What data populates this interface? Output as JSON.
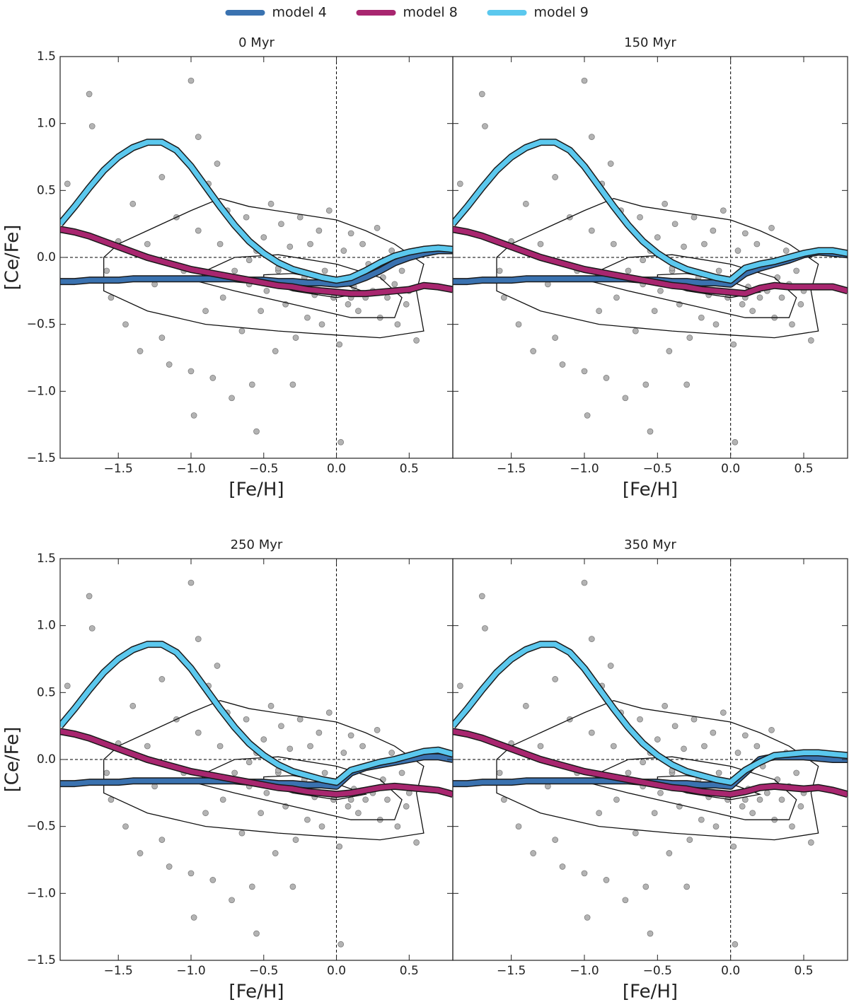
{
  "legend_series": [
    {
      "name": "model 4",
      "color": "#3a72b0"
    },
    {
      "name": "model 8",
      "color": "#a8266f"
    },
    {
      "name": "model 9",
      "color": "#5bc8ee"
    }
  ],
  "stars": {
    "color": "#b3b3b3",
    "x": [
      -1.85,
      -1.7,
      -1.68,
      -1.55,
      -1.5,
      -1.45,
      -1.4,
      -1.35,
      -1.3,
      -1.25,
      -1.2,
      -1.15,
      -1.1,
      -1.05,
      -1.0,
      -0.98,
      -0.95,
      -0.9,
      -0.88,
      -0.85,
      -0.8,
      -0.78,
      -0.75,
      -0.72,
      -0.7,
      -0.68,
      -0.65,
      -0.62,
      -0.6,
      -0.58,
      -0.55,
      -0.52,
      -0.5,
      -0.48,
      -0.45,
      -0.42,
      -0.4,
      -0.38,
      -0.35,
      -0.32,
      -0.3,
      -0.28,
      -0.25,
      -0.22,
      -0.2,
      -0.18,
      -0.15,
      -0.12,
      -0.1,
      -0.08,
      -0.05,
      -0.02,
      0.0,
      0.02,
      0.05,
      0.08,
      0.1,
      0.12,
      0.15,
      0.18,
      0.2,
      0.22,
      0.25,
      0.28,
      0.3,
      0.32,
      0.35,
      0.38,
      0.4,
      0.42,
      0.45,
      0.48,
      0.5,
      0.55,
      -0.95,
      -0.6,
      -0.3,
      0.03,
      -1.58,
      -0.82,
      -1.0,
      -0.55,
      -0.7,
      -0.4,
      0.1,
      -1.2
    ],
    "y": [
      0.55,
      1.22,
      0.98,
      -0.3,
      0.12,
      -0.5,
      0.4,
      -0.7,
      0.1,
      -0.2,
      0.6,
      -0.8,
      0.3,
      -0.1,
      1.32,
      -1.18,
      0.2,
      -0.4,
      0.55,
      -0.9,
      0.1,
      -0.3,
      0.35,
      -1.05,
      -0.1,
      0.22,
      -0.55,
      0.3,
      -0.2,
      -0.95,
      0.05,
      -0.4,
      0.15,
      -0.25,
      0.4,
      -0.7,
      -0.1,
      0.25,
      -0.35,
      0.08,
      -0.2,
      -0.6,
      0.3,
      -0.15,
      -0.45,
      0.1,
      -0.28,
      0.2,
      -0.5,
      -0.1,
      0.35,
      -0.3,
      -0.2,
      -0.65,
      0.05,
      -0.35,
      0.18,
      -0.22,
      -0.4,
      0.1,
      -0.3,
      -0.05,
      -0.25,
      0.22,
      -0.45,
      -0.15,
      -0.3,
      0.05,
      -0.2,
      -0.5,
      -0.1,
      -0.35,
      -0.25,
      -0.62,
      0.9,
      -0.02,
      -0.95,
      -1.38,
      -0.1,
      0.7,
      -0.85,
      -1.3,
      -0.15,
      -0.08,
      -0.3,
      -0.6
    ]
  },
  "contours": [
    {
      "x": [
        -1.6,
        -1.6,
        -1.5,
        -1.3,
        -1.0,
        -0.8,
        -0.6,
        -0.3,
        0.0,
        0.2,
        0.4,
        0.6,
        0.55,
        0.6,
        0.3,
        0.0,
        -0.4,
        -0.9,
        -1.3,
        -1.6
      ],
      "y": [
        -0.15,
        0.0,
        0.1,
        0.2,
        0.35,
        0.44,
        0.38,
        0.33,
        0.28,
        0.2,
        0.1,
        -0.05,
        -0.25,
        -0.55,
        -0.6,
        -0.58,
        -0.55,
        -0.5,
        -0.4,
        -0.25
      ]
    },
    {
      "x": [
        -0.9,
        -0.7,
        -0.4,
        0.0,
        0.3,
        0.45,
        0.4,
        0.1,
        -0.3,
        -0.7,
        -0.95
      ],
      "y": [
        -0.1,
        0.0,
        0.02,
        -0.05,
        -0.15,
        -0.3,
        -0.45,
        -0.45,
        -0.35,
        -0.25,
        -0.18
      ]
    },
    {
      "x": [
        -0.5,
        -0.3,
        0.0,
        0.2,
        0.0,
        -0.3,
        -0.5
      ],
      "y": [
        -0.13,
        -0.12,
        -0.18,
        -0.26,
        -0.3,
        -0.25,
        -0.18
      ]
    }
  ],
  "chart_data": [
    {
      "type": "line",
      "title": "0 Myr",
      "xlabel": "[Fe/H]",
      "ylabel": "[Ce/Fe]",
      "xlim": [
        -1.9,
        0.8
      ],
      "ylim": [
        -1.5,
        1.5
      ],
      "xticks": [
        {
          "value": -1.5,
          "label": "−1.5"
        },
        {
          "value": -1.0,
          "label": "−1.0"
        },
        {
          "value": -0.5,
          "label": "−0.5"
        },
        {
          "value": 0.0,
          "label": "0.0"
        },
        {
          "value": 0.5,
          "label": "0.5"
        }
      ],
      "yticks": [
        {
          "value": -1.5,
          "label": "−1.5"
        },
        {
          "value": -1.0,
          "label": "−1.0"
        },
        {
          "value": -0.5,
          "label": "−0.5"
        },
        {
          "value": 0.0,
          "label": "0.0"
        },
        {
          "value": 0.5,
          "label": "0.5"
        },
        {
          "value": 1.0,
          "label": "1.0"
        },
        {
          "value": 1.5,
          "label": "1.5"
        }
      ],
      "x": [
        -1.9,
        -1.8,
        -1.7,
        -1.6,
        -1.5,
        -1.4,
        -1.3,
        -1.2,
        -1.1,
        -1.0,
        -0.9,
        -0.8,
        -0.7,
        -0.6,
        -0.5,
        -0.4,
        -0.3,
        -0.2,
        -0.1,
        0.0,
        0.1,
        0.2,
        0.3,
        0.4,
        0.5,
        0.6,
        0.7,
        0.8
      ],
      "series": [
        {
          "name": "model 4",
          "color": "#3a72b0",
          "values": [
            -0.18,
            -0.18,
            -0.17,
            -0.17,
            -0.17,
            -0.16,
            -0.16,
            -0.16,
            -0.16,
            -0.16,
            -0.16,
            -0.16,
            -0.16,
            -0.17,
            -0.17,
            -0.18,
            -0.18,
            -0.19,
            -0.19,
            -0.2,
            -0.19,
            -0.15,
            -0.1,
            -0.04,
            0.0,
            0.03,
            0.05,
            0.05
          ]
        },
        {
          "name": "model 8",
          "color": "#a8266f",
          "values": [
            0.21,
            0.19,
            0.16,
            0.12,
            0.08,
            0.04,
            0.0,
            -0.03,
            -0.06,
            -0.09,
            -0.11,
            -0.13,
            -0.15,
            -0.17,
            -0.19,
            -0.21,
            -0.22,
            -0.24,
            -0.25,
            -0.26,
            -0.27,
            -0.27,
            -0.26,
            -0.25,
            -0.24,
            -0.21,
            -0.22,
            -0.24
          ]
        },
        {
          "name": "model 9",
          "color": "#5bc8ee",
          "values": [
            0.25,
            0.38,
            0.52,
            0.65,
            0.75,
            0.82,
            0.86,
            0.86,
            0.8,
            0.68,
            0.53,
            0.38,
            0.24,
            0.12,
            0.03,
            -0.04,
            -0.09,
            -0.12,
            -0.15,
            -0.17,
            -0.15,
            -0.1,
            -0.04,
            0.01,
            0.04,
            0.06,
            0.07,
            0.06
          ]
        }
      ]
    },
    {
      "type": "line",
      "title": "150 Myr",
      "xlabel": "[Fe/H]",
      "xlim": [
        -1.9,
        0.8
      ],
      "ylim": [
        -1.5,
        1.5
      ],
      "xticks": [
        {
          "value": -1.5,
          "label": "−1.5"
        },
        {
          "value": -1.0,
          "label": "−1.0"
        },
        {
          "value": -0.5,
          "label": "−0.5"
        },
        {
          "value": 0.0,
          "label": "0.0"
        },
        {
          "value": 0.5,
          "label": "0.5"
        }
      ],
      "yticks": [
        -1.5,
        -1.0,
        -0.5,
        0.0,
        0.5,
        1.0,
        1.5
      ],
      "x": [
        -1.9,
        -1.8,
        -1.7,
        -1.6,
        -1.5,
        -1.4,
        -1.3,
        -1.2,
        -1.1,
        -1.0,
        -0.9,
        -0.8,
        -0.7,
        -0.6,
        -0.5,
        -0.4,
        -0.3,
        -0.2,
        -0.1,
        0.0,
        0.1,
        0.2,
        0.3,
        0.4,
        0.5,
        0.6,
        0.7,
        0.8
      ],
      "series": [
        {
          "name": "model 4",
          "color": "#3a72b0",
          "values": [
            -0.18,
            -0.18,
            -0.17,
            -0.17,
            -0.17,
            -0.16,
            -0.16,
            -0.16,
            -0.16,
            -0.16,
            -0.16,
            -0.16,
            -0.16,
            -0.17,
            -0.17,
            -0.18,
            -0.18,
            -0.19,
            -0.19,
            -0.2,
            -0.12,
            -0.08,
            -0.05,
            -0.02,
            0.02,
            0.04,
            0.03,
            0.02
          ]
        },
        {
          "name": "model 8",
          "color": "#a8266f",
          "values": [
            0.21,
            0.19,
            0.16,
            0.12,
            0.08,
            0.04,
            0.0,
            -0.03,
            -0.06,
            -0.09,
            -0.11,
            -0.13,
            -0.15,
            -0.17,
            -0.19,
            -0.21,
            -0.22,
            -0.24,
            -0.25,
            -0.26,
            -0.27,
            -0.23,
            -0.21,
            -0.22,
            -0.22,
            -0.22,
            -0.22,
            -0.25
          ]
        },
        {
          "name": "model 9",
          "color": "#5bc8ee",
          "values": [
            0.25,
            0.38,
            0.52,
            0.65,
            0.75,
            0.82,
            0.86,
            0.86,
            0.8,
            0.68,
            0.53,
            0.38,
            0.24,
            0.12,
            0.03,
            -0.04,
            -0.09,
            -0.12,
            -0.15,
            -0.17,
            -0.08,
            -0.05,
            -0.03,
            0.0,
            0.03,
            0.05,
            0.05,
            0.03
          ]
        }
      ]
    },
    {
      "type": "line",
      "title": "250 Myr",
      "xlabel": "[Fe/H]",
      "ylabel": "[Ce/Fe]",
      "xlim": [
        -1.9,
        0.8
      ],
      "ylim": [
        -1.5,
        1.5
      ],
      "xticks": [
        {
          "value": -1.5,
          "label": "−1.5"
        },
        {
          "value": -1.0,
          "label": "−1.0"
        },
        {
          "value": -0.5,
          "label": "−0.5"
        },
        {
          "value": 0.0,
          "label": "0.0"
        },
        {
          "value": 0.5,
          "label": "0.5"
        }
      ],
      "yticks": [
        {
          "value": -1.5,
          "label": "−1.5"
        },
        {
          "value": -1.0,
          "label": "−1.0"
        },
        {
          "value": -0.5,
          "label": "−0.5"
        },
        {
          "value": 0.0,
          "label": "0.0"
        },
        {
          "value": 0.5,
          "label": "0.5"
        },
        {
          "value": 1.0,
          "label": "1.0"
        },
        {
          "value": 1.5,
          "label": "1.5"
        }
      ],
      "x": [
        -1.9,
        -1.8,
        -1.7,
        -1.6,
        -1.5,
        -1.4,
        -1.3,
        -1.2,
        -1.1,
        -1.0,
        -0.9,
        -0.8,
        -0.7,
        -0.6,
        -0.5,
        -0.4,
        -0.3,
        -0.2,
        -0.1,
        0.0,
        0.1,
        0.2,
        0.3,
        0.4,
        0.5,
        0.6,
        0.7,
        0.8
      ],
      "series": [
        {
          "name": "model 4",
          "color": "#3a72b0",
          "values": [
            -0.18,
            -0.18,
            -0.17,
            -0.17,
            -0.17,
            -0.16,
            -0.16,
            -0.16,
            -0.16,
            -0.16,
            -0.16,
            -0.16,
            -0.16,
            -0.17,
            -0.17,
            -0.18,
            -0.18,
            -0.19,
            -0.19,
            -0.2,
            -0.1,
            -0.06,
            -0.04,
            -0.02,
            0.0,
            0.02,
            0.02,
            0.0
          ]
        },
        {
          "name": "model 8",
          "color": "#a8266f",
          "values": [
            0.21,
            0.19,
            0.16,
            0.12,
            0.08,
            0.04,
            0.0,
            -0.03,
            -0.06,
            -0.09,
            -0.11,
            -0.13,
            -0.15,
            -0.17,
            -0.19,
            -0.21,
            -0.22,
            -0.24,
            -0.25,
            -0.26,
            -0.25,
            -0.23,
            -0.21,
            -0.2,
            -0.21,
            -0.22,
            -0.23,
            -0.26
          ]
        },
        {
          "name": "model 9",
          "color": "#5bc8ee",
          "values": [
            0.25,
            0.38,
            0.52,
            0.65,
            0.75,
            0.82,
            0.86,
            0.86,
            0.8,
            0.68,
            0.53,
            0.38,
            0.24,
            0.12,
            0.03,
            -0.04,
            -0.09,
            -0.12,
            -0.15,
            -0.17,
            -0.08,
            -0.05,
            -0.02,
            0.0,
            0.03,
            0.06,
            0.07,
            0.04
          ]
        }
      ]
    },
    {
      "type": "line",
      "title": "350 Myr",
      "xlabel": "[Fe/H]",
      "xlim": [
        -1.9,
        0.8
      ],
      "ylim": [
        -1.5,
        1.5
      ],
      "xticks": [
        {
          "value": -1.5,
          "label": "−1.5"
        },
        {
          "value": -1.0,
          "label": "−1.0"
        },
        {
          "value": -0.5,
          "label": "−0.5"
        },
        {
          "value": 0.0,
          "label": "0.0"
        },
        {
          "value": 0.5,
          "label": "0.5"
        }
      ],
      "yticks": [
        -1.5,
        -1.0,
        -0.5,
        0.0,
        0.5,
        1.0,
        1.5
      ],
      "x": [
        -1.9,
        -1.8,
        -1.7,
        -1.6,
        -1.5,
        -1.4,
        -1.3,
        -1.2,
        -1.1,
        -1.0,
        -0.9,
        -0.8,
        -0.7,
        -0.6,
        -0.5,
        -0.4,
        -0.3,
        -0.2,
        -0.1,
        0.0,
        0.1,
        0.2,
        0.3,
        0.4,
        0.5,
        0.6,
        0.7,
        0.8
      ],
      "series": [
        {
          "name": "model 4",
          "color": "#3a72b0",
          "values": [
            -0.18,
            -0.18,
            -0.17,
            -0.17,
            -0.17,
            -0.16,
            -0.16,
            -0.16,
            -0.16,
            -0.16,
            -0.16,
            -0.16,
            -0.16,
            -0.17,
            -0.17,
            -0.18,
            -0.18,
            -0.19,
            -0.19,
            -0.2,
            -0.1,
            0.0,
            0.02,
            0.02,
            0.02,
            0.01,
            0.0,
            0.0
          ]
        },
        {
          "name": "model 8",
          "color": "#a8266f",
          "values": [
            0.21,
            0.19,
            0.16,
            0.12,
            0.08,
            0.04,
            0.0,
            -0.03,
            -0.06,
            -0.09,
            -0.11,
            -0.13,
            -0.15,
            -0.17,
            -0.19,
            -0.21,
            -0.22,
            -0.24,
            -0.25,
            -0.26,
            -0.24,
            -0.21,
            -0.2,
            -0.21,
            -0.22,
            -0.21,
            -0.23,
            -0.26
          ]
        },
        {
          "name": "model 9",
          "color": "#5bc8ee",
          "values": [
            0.25,
            0.38,
            0.52,
            0.65,
            0.75,
            0.82,
            0.86,
            0.86,
            0.8,
            0.68,
            0.53,
            0.38,
            0.24,
            0.12,
            0.03,
            -0.04,
            -0.09,
            -0.12,
            -0.15,
            -0.17,
            -0.08,
            -0.02,
            0.03,
            0.04,
            0.05,
            0.05,
            0.04,
            0.03
          ]
        }
      ]
    }
  ]
}
